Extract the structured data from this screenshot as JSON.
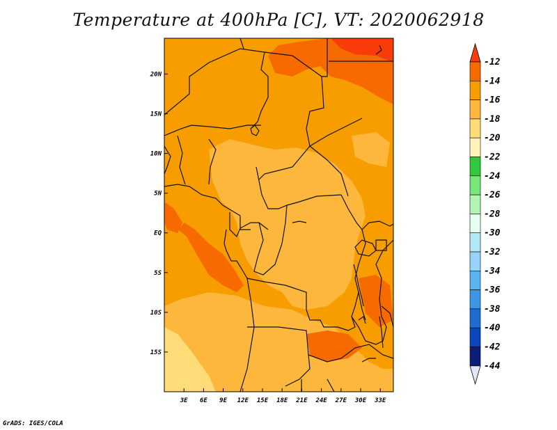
{
  "title": "Temperature at 400hPa [C], VT: 2020062918",
  "credit": "GrADS: IGES/COLA",
  "map": {
    "lon_range": [
      0,
      35
    ],
    "lat_range": [
      -20,
      24.5
    ],
    "x_ticks": [
      "3E",
      "6E",
      "9E",
      "12E",
      "15E",
      "18E",
      "21E",
      "24E",
      "27E",
      "30E",
      "33E"
    ],
    "x_tick_values": [
      3,
      6,
      9,
      12,
      15,
      18,
      21,
      24,
      27,
      30,
      33
    ],
    "y_ticks": [
      "20N",
      "15N",
      "10N",
      "5N",
      "EQ",
      "5S",
      "10S",
      "15S"
    ],
    "y_tick_values": [
      20,
      15,
      10,
      5,
      0,
      -5,
      -10,
      -15
    ]
  },
  "colorbar": {
    "labels": [
      "-12",
      "-14",
      "-16",
      "-18",
      "-20",
      "-22",
      "-24",
      "-26",
      "-28",
      "-30",
      "-32",
      "-34",
      "-36",
      "-38",
      "-40",
      "-42",
      "-44"
    ],
    "colors": [
      "#fa3c0a",
      "#f76a00",
      "#f79d00",
      "#fcb73c",
      "#fedc78",
      "#fff5bc",
      "#32c83c",
      "#78e678",
      "#b4f5b4",
      "#e6fff0",
      "#b4e6fa",
      "#96d2fa",
      "#5ab4f0",
      "#3c96e6",
      "#1e6ed2",
      "#0a46be",
      "#0a1e78",
      "#e6e6fa"
    ]
  }
}
